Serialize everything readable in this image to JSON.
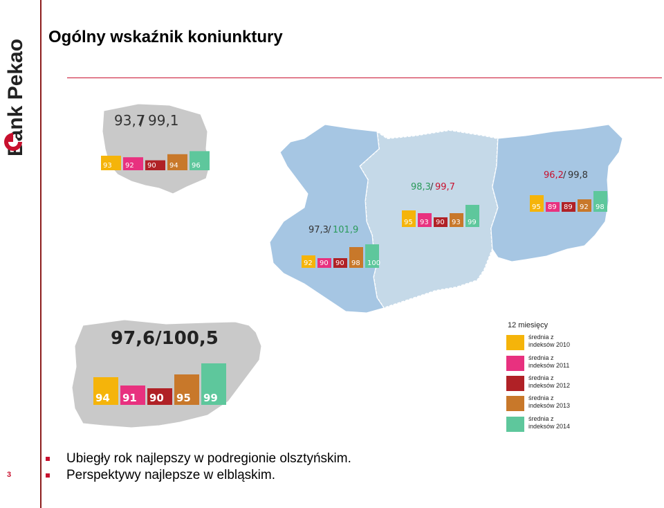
{
  "slide": {
    "title": "Ogólny wskaźnik koniunktury",
    "page_number": "3",
    "brand": "Bank Pekao"
  },
  "colors": {
    "c2010": "#f5b40a",
    "c2011": "#e8317f",
    "c2012": "#b02126",
    "c2013": "#c8782a",
    "c2014": "#5ec79c",
    "map_blue": "#a6c6e3",
    "map_light": "#c5d9e8",
    "map_grey": "#c9c9c9"
  },
  "poland": {
    "index_a": "93,7",
    "sep": "/",
    "index_b": "99,1",
    "values": [
      "93",
      "92",
      "90",
      "94",
      "96"
    ]
  },
  "regions": [
    {
      "index_a": "97,3",
      "sep": "/",
      "index_b": "101,9",
      "values": [
        "92",
        "90",
        "90",
        "98",
        "100"
      ]
    },
    {
      "index_a": "98,3",
      "sep": "/",
      "index_b": "99,7",
      "values": [
        "95",
        "93",
        "90",
        "93",
        "99"
      ]
    },
    {
      "index_a": "96,2",
      "sep": "/",
      "index_b": "99,8",
      "values": [
        "95",
        "89",
        "89",
        "92",
        "98"
      ]
    }
  ],
  "voivodeship": {
    "index": "97,6/100,5",
    "values": [
      "94",
      "91",
      "90",
      "95",
      "99"
    ]
  },
  "legend": {
    "title": "12 miesięcy",
    "items": [
      {
        "label": "średnia z\nindeksów 2010",
        "color": "#f5b40a"
      },
      {
        "label": "średnia z\nindeksów 2011",
        "color": "#e8317f"
      },
      {
        "label": "średnia z\nindeksów 2012",
        "color": "#b02126"
      },
      {
        "label": "średnia z\nindeksów 2013",
        "color": "#c8782a"
      },
      {
        "label": "średnia z\nindeksów 2014",
        "color": "#5ec79c"
      }
    ]
  },
  "bullets": [
    "Ubiegły rok najlepszy w podregionie olsztyńskim.",
    "Perspektywy najlepsze w elbląskim."
  ]
}
